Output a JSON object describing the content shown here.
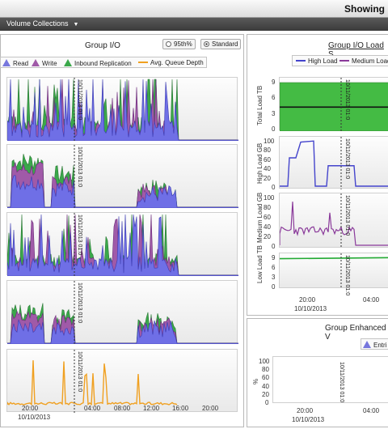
{
  "header": {
    "title": "Showing"
  },
  "menubar": {
    "volume_collections": "Volume Collections"
  },
  "left_panel": {
    "title": "Group I/O",
    "radio_95": "95th%",
    "radio_standard": "Standard",
    "legend": {
      "read": "Read",
      "write": "Write",
      "inbound": "Inbound Replication",
      "queue": "Avg. Queue Depth"
    },
    "marker": "10/11/2013 01:0",
    "x_ticks": [
      "20:00",
      "04:00",
      "08:00",
      "12:00",
      "16:00",
      "20:00"
    ],
    "date_label": "10/10/2013"
  },
  "right_top": {
    "title": "Group I/O Load S",
    "legend_high": "High Load",
    "legend_medium": "Medium Load",
    "ylabels": [
      "Total Load TB",
      "High Load GB",
      "Medium Load GB",
      "Low Load TB"
    ],
    "total_ticks": [
      "9",
      "6",
      "3",
      "0"
    ],
    "high_ticks": [
      "100",
      "80",
      "60",
      "40",
      "20",
      "0"
    ],
    "medium_ticks": [
      "100",
      "80",
      "60",
      "40",
      "20",
      "0"
    ],
    "low_ticks": [
      "9",
      "6",
      "3",
      "0"
    ],
    "marker": "10/11/2013 01:0",
    "x_ticks": [
      "20:00",
      "04:00"
    ],
    "date_label": "10/10/2013"
  },
  "right_bottom": {
    "title": "Group Enhanced V",
    "legend_entry": "Entri",
    "ylabel": "%",
    "y_ticks": [
      "100",
      "80",
      "60",
      "40",
      "20",
      "0"
    ],
    "marker": "10/11/2013 01:0",
    "x_ticks": [
      "20:00",
      "04:00"
    ],
    "date_label": "10/10/2013"
  },
  "colors": {
    "read": "#6f6fe6",
    "write": "#a05aa8",
    "inbound": "#3aa84a",
    "queue": "#f0a020",
    "high": "#4444cc",
    "medium": "#8a3a9a",
    "low": "#22aa33",
    "total_fill": "#44bb44"
  }
}
